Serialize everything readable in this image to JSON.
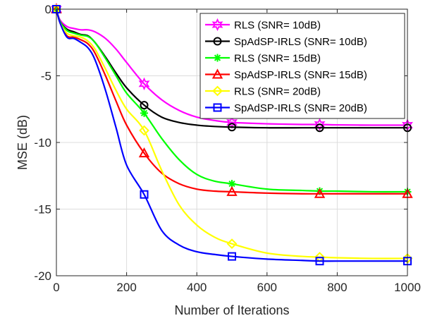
{
  "chart_data": {
    "type": "line",
    "title": "",
    "xlabel": "Number of Iterations",
    "ylabel": "MSE (dB)",
    "xlim": [
      0,
      1000
    ],
    "ylim": [
      -20,
      0
    ],
    "xticks": [
      0,
      200,
      400,
      600,
      800,
      1000
    ],
    "yticks": [
      0,
      -5,
      -10,
      -15,
      -20
    ],
    "xtick_labels": [
      "0",
      "200",
      "400",
      "600",
      "800",
      "1000"
    ],
    "ytick_labels": [
      "0",
      "-5",
      "-10",
      "-15",
      "-20"
    ],
    "grid": true,
    "legend_position": "top-right",
    "series": [
      {
        "name": "RLS (SNR= 10dB)",
        "color": "#ff00ff",
        "marker": "hexagram",
        "x": [
          0,
          10,
          30,
          50,
          70,
          90,
          110,
          140,
          170,
          200,
          250,
          300,
          350,
          400,
          450,
          500,
          600,
          700,
          750,
          800,
          900,
          1000
        ],
        "y": [
          0,
          -0.8,
          -1.3,
          -1.45,
          -1.55,
          -1.55,
          -1.7,
          -2.2,
          -3.0,
          -4.0,
          -5.6,
          -6.8,
          -7.6,
          -8.1,
          -8.35,
          -8.5,
          -8.6,
          -8.65,
          -8.65,
          -8.68,
          -8.7,
          -8.7
        ],
        "marker_x": [
          0,
          250,
          500,
          750,
          1000
        ],
        "marker_y": [
          0,
          -5.6,
          -8.5,
          -8.65,
          -8.7
        ]
      },
      {
        "name": "SpAdSP-IRLS (SNR= 10dB)",
        "color": "#000000",
        "marker": "circle",
        "x": [
          0,
          10,
          30,
          50,
          70,
          90,
          110,
          140,
          170,
          200,
          250,
          300,
          350,
          400,
          450,
          500,
          600,
          700,
          750,
          800,
          900,
          1000
        ],
        "y": [
          0,
          -0.9,
          -1.5,
          -1.7,
          -1.9,
          -2.0,
          -2.5,
          -3.6,
          -4.8,
          -5.9,
          -7.2,
          -8.1,
          -8.5,
          -8.7,
          -8.8,
          -8.85,
          -8.9,
          -8.9,
          -8.9,
          -8.9,
          -8.9,
          -8.9
        ],
        "marker_x": [
          0,
          250,
          500,
          750,
          1000
        ],
        "marker_y": [
          0,
          -7.2,
          -8.85,
          -8.9,
          -8.9
        ]
      },
      {
        "name": "RLS (SNR= 15dB)",
        "color": "#00ff00",
        "marker": "asterisk",
        "x": [
          0,
          10,
          30,
          50,
          70,
          90,
          110,
          140,
          170,
          200,
          250,
          300,
          350,
          400,
          450,
          500,
          600,
          700,
          750,
          800,
          900,
          1000
        ],
        "y": [
          0,
          -0.9,
          -1.6,
          -1.8,
          -1.95,
          -2.05,
          -2.5,
          -3.7,
          -5.0,
          -6.3,
          -7.8,
          -9.7,
          -11.3,
          -12.4,
          -12.9,
          -13.1,
          -13.5,
          -13.6,
          -13.65,
          -13.65,
          -13.7,
          -13.7
        ],
        "marker_x": [
          0,
          250,
          500,
          750,
          1000
        ],
        "marker_y": [
          0,
          -7.8,
          -13.1,
          -13.65,
          -13.7
        ]
      },
      {
        "name": "SpAdSP-IRLS (SNR= 15dB)",
        "color": "#ff0000",
        "marker": "triangle",
        "x": [
          0,
          10,
          30,
          50,
          70,
          90,
          110,
          140,
          170,
          200,
          250,
          300,
          350,
          400,
          450,
          500,
          600,
          700,
          750,
          800,
          900,
          1000
        ],
        "y": [
          0,
          -1.0,
          -2.0,
          -2.1,
          -2.3,
          -2.6,
          -3.3,
          -5.0,
          -6.9,
          -8.7,
          -10.8,
          -12.3,
          -13.1,
          -13.5,
          -13.65,
          -13.7,
          -13.8,
          -13.85,
          -13.85,
          -13.85,
          -13.85,
          -13.85
        ],
        "marker_x": [
          0,
          250,
          500,
          750,
          1000
        ],
        "marker_y": [
          0,
          -10.8,
          -13.7,
          -13.85,
          -13.85
        ]
      },
      {
        "name": "RLS (SNR= 20dB)",
        "color": "#ffff00",
        "marker": "diamond",
        "x": [
          0,
          10,
          30,
          50,
          70,
          90,
          110,
          140,
          170,
          200,
          250,
          300,
          350,
          400,
          450,
          500,
          600,
          700,
          750,
          800,
          900,
          1000
        ],
        "y": [
          0,
          -1.0,
          -1.8,
          -2.0,
          -2.1,
          -2.4,
          -3.0,
          -4.5,
          -6.1,
          -7.5,
          -9.1,
          -12.1,
          -14.7,
          -16.2,
          -17.1,
          -17.6,
          -18.3,
          -18.55,
          -18.6,
          -18.65,
          -18.7,
          -18.7
        ],
        "marker_x": [
          0,
          250,
          500,
          750,
          1000
        ],
        "marker_y": [
          0,
          -9.1,
          -17.6,
          -18.6,
          -18.7
        ]
      },
      {
        "name": "SpAdSP-IRLS (SNR= 20dB)",
        "color": "#0000ff",
        "marker": "square",
        "x": [
          0,
          10,
          30,
          50,
          70,
          90,
          110,
          140,
          170,
          200,
          250,
          300,
          350,
          400,
          450,
          500,
          600,
          700,
          750,
          800,
          900,
          1000
        ],
        "y": [
          0,
          -1.0,
          -2.1,
          -2.2,
          -2.5,
          -2.9,
          -3.8,
          -6.1,
          -8.9,
          -11.7,
          -13.9,
          -16.6,
          -17.7,
          -18.2,
          -18.4,
          -18.55,
          -18.75,
          -18.85,
          -18.9,
          -18.9,
          -18.9,
          -18.9
        ],
        "marker_x": [
          0,
          250,
          500,
          750,
          1000
        ],
        "marker_y": [
          0,
          -13.9,
          -18.55,
          -18.9,
          -18.9
        ]
      }
    ]
  }
}
